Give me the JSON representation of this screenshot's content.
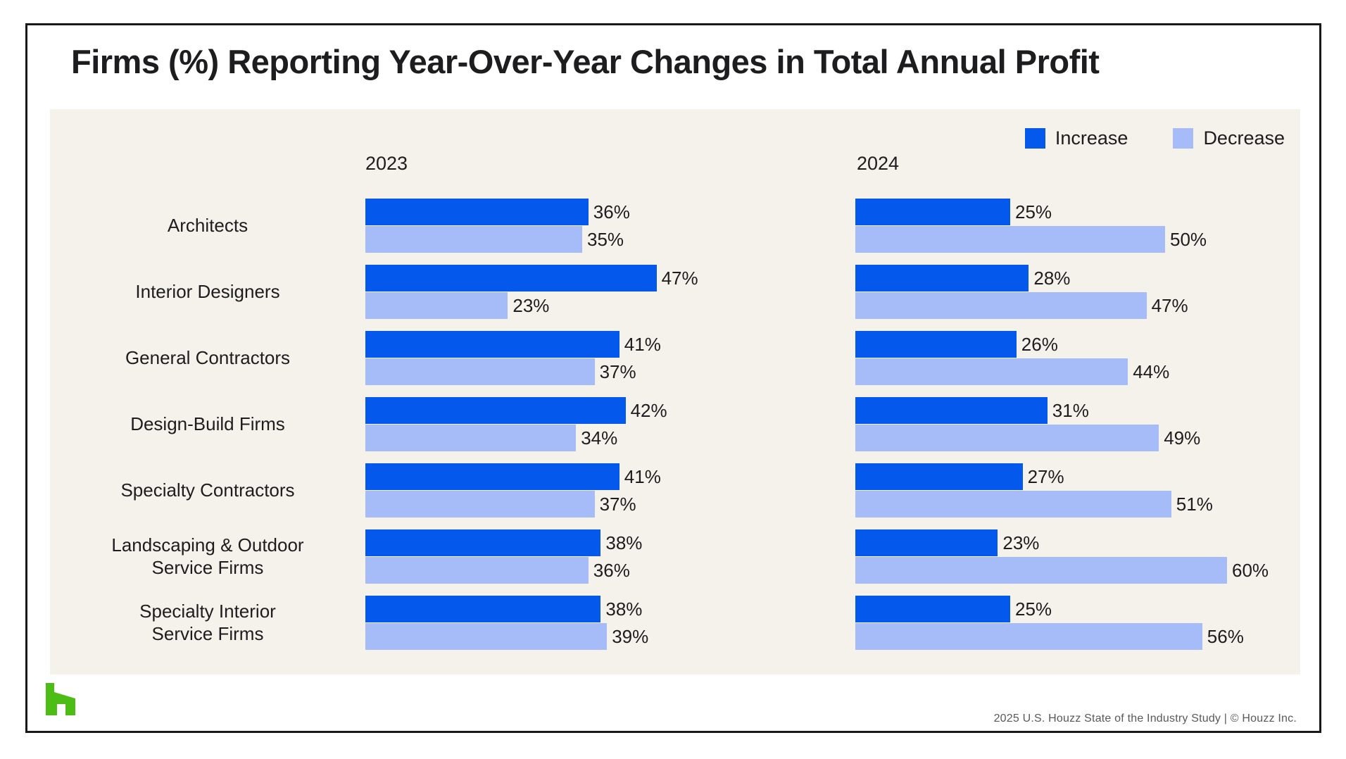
{
  "title": "Firms (%) Reporting Year-Over-Year Changes in Total Annual Profit",
  "legend": {
    "increase_label": "Increase",
    "decrease_label": "Decrease"
  },
  "colors": {
    "increase": "#0459EC",
    "decrease": "#A6BCF8",
    "panel_background": "#F5F1EB",
    "logo_green": "#4DBC15",
    "text": "#1D1D1F",
    "border": "#191919"
  },
  "footer": {
    "source": "2025 U.S. Houzz State of the Industry Study  |  © Houzz Inc."
  },
  "chart_data": {
    "type": "bar",
    "orientation": "horizontal",
    "unit": "%",
    "value_labels": "outside-end",
    "xlim": [
      0,
      65
    ],
    "grid": false,
    "legend_position": "top-right",
    "categories": [
      "Architects",
      "Interior Designers",
      "General Contractors",
      "Design-Build Firms",
      "Specialty Contractors",
      "Landscaping & Outdoor\nService Firms",
      "Specialty Interior\nService Firms"
    ],
    "panels": [
      {
        "label": "2023",
        "series": [
          {
            "name": "Increase",
            "values": [
              36,
              47,
              41,
              42,
              41,
              38,
              38
            ]
          },
          {
            "name": "Decrease",
            "values": [
              35,
              23,
              37,
              34,
              37,
              36,
              39
            ]
          }
        ]
      },
      {
        "label": "2024",
        "series": [
          {
            "name": "Increase",
            "values": [
              25,
              28,
              26,
              31,
              27,
              23,
              25
            ]
          },
          {
            "name": "Decrease",
            "values": [
              50,
              47,
              44,
              49,
              51,
              60,
              56
            ]
          }
        ]
      }
    ]
  }
}
